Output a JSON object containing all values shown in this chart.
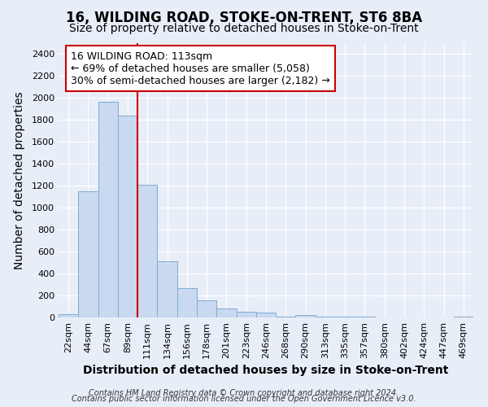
{
  "title": "16, WILDING ROAD, STOKE-ON-TRENT, ST6 8BA",
  "subtitle": "Size of property relative to detached houses in Stoke-on-Trent",
  "xlabel": "Distribution of detached houses by size in Stoke-on-Trent",
  "ylabel": "Number of detached properties",
  "footer_line1": "Contains HM Land Registry data © Crown copyright and database right 2024.",
  "footer_line2": "Contains public sector information licensed under the Open Government Licence v3.0.",
  "bar_labels": [
    "22sqm",
    "44sqm",
    "67sqm",
    "89sqm",
    "111sqm",
    "134sqm",
    "156sqm",
    "178sqm",
    "201sqm",
    "223sqm",
    "246sqm",
    "268sqm",
    "290sqm",
    "313sqm",
    "335sqm",
    "357sqm",
    "380sqm",
    "402sqm",
    "424sqm",
    "447sqm",
    "469sqm"
  ],
  "bar_values": [
    30,
    1150,
    1960,
    1840,
    1210,
    510,
    265,
    155,
    80,
    50,
    45,
    5,
    22,
    5,
    5,
    5,
    0,
    0,
    0,
    0,
    5
  ],
  "bar_color": "#c9d9ef",
  "bar_edge_color": "#7dacd4",
  "vline_color": "#cc0000",
  "ylim": [
    0,
    2500
  ],
  "yticks": [
    0,
    200,
    400,
    600,
    800,
    1000,
    1200,
    1400,
    1600,
    1800,
    2000,
    2200,
    2400
  ],
  "annotation_title": "16 WILDING ROAD: 113sqm",
  "annotation_line1": "← 69% of detached houses are smaller (5,058)",
  "annotation_line2": "30% of semi-detached houses are larger (2,182) →",
  "annotation_box_color": "#cc0000",
  "background_color": "#e8eef8",
  "grid_color": "#ffffff",
  "title_fontsize": 12,
  "subtitle_fontsize": 10,
  "axis_label_fontsize": 10,
  "tick_fontsize": 8,
  "annotation_fontsize": 9
}
